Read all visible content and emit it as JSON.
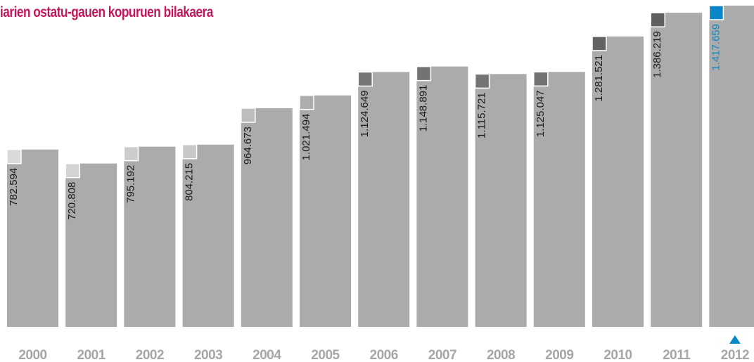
{
  "chart_data": {
    "type": "bar",
    "title": "iarien ostatu-gauen kopuruen bilakaera",
    "categories": [
      "2000",
      "2001",
      "2002",
      "2003",
      "2004",
      "2005",
      "2006",
      "2007",
      "2008",
      "2009",
      "2010",
      "2011",
      "2012"
    ],
    "values": [
      782594,
      720808,
      795192,
      804215,
      964673,
      1021494,
      1124649,
      1148891,
      1115721,
      1125047,
      1281521,
      1386219,
      1417659
    ],
    "value_labels": [
      "782.594",
      "720.808",
      "795.192",
      "804.215",
      "964.673",
      "1.021.494",
      "1.124.649",
      "1.148.891",
      "1.115.721",
      "1.125.047",
      "1.281.521",
      "1.386.219",
      "1.417.659"
    ],
    "ylim": [
      0,
      1417659
    ],
    "grid": false,
    "highlight_index": 12,
    "highlight_marker": "up-triangle-icon",
    "colors": {
      "title": "#c2185b",
      "bar": "#ababab",
      "year_text": "#a6a6a6",
      "value_text": "#1a1a1a",
      "highlight": "#0a87c8",
      "marker_shades": [
        "#d9d9d9",
        "#d4d4d4",
        "#cccccc",
        "#c7c7c7",
        "#bdbdbd",
        "#adadad",
        "#777777",
        "#737373",
        "#747474",
        "#737373",
        "#636363",
        "#5f5f5f",
        "#0a87c8"
      ]
    }
  }
}
